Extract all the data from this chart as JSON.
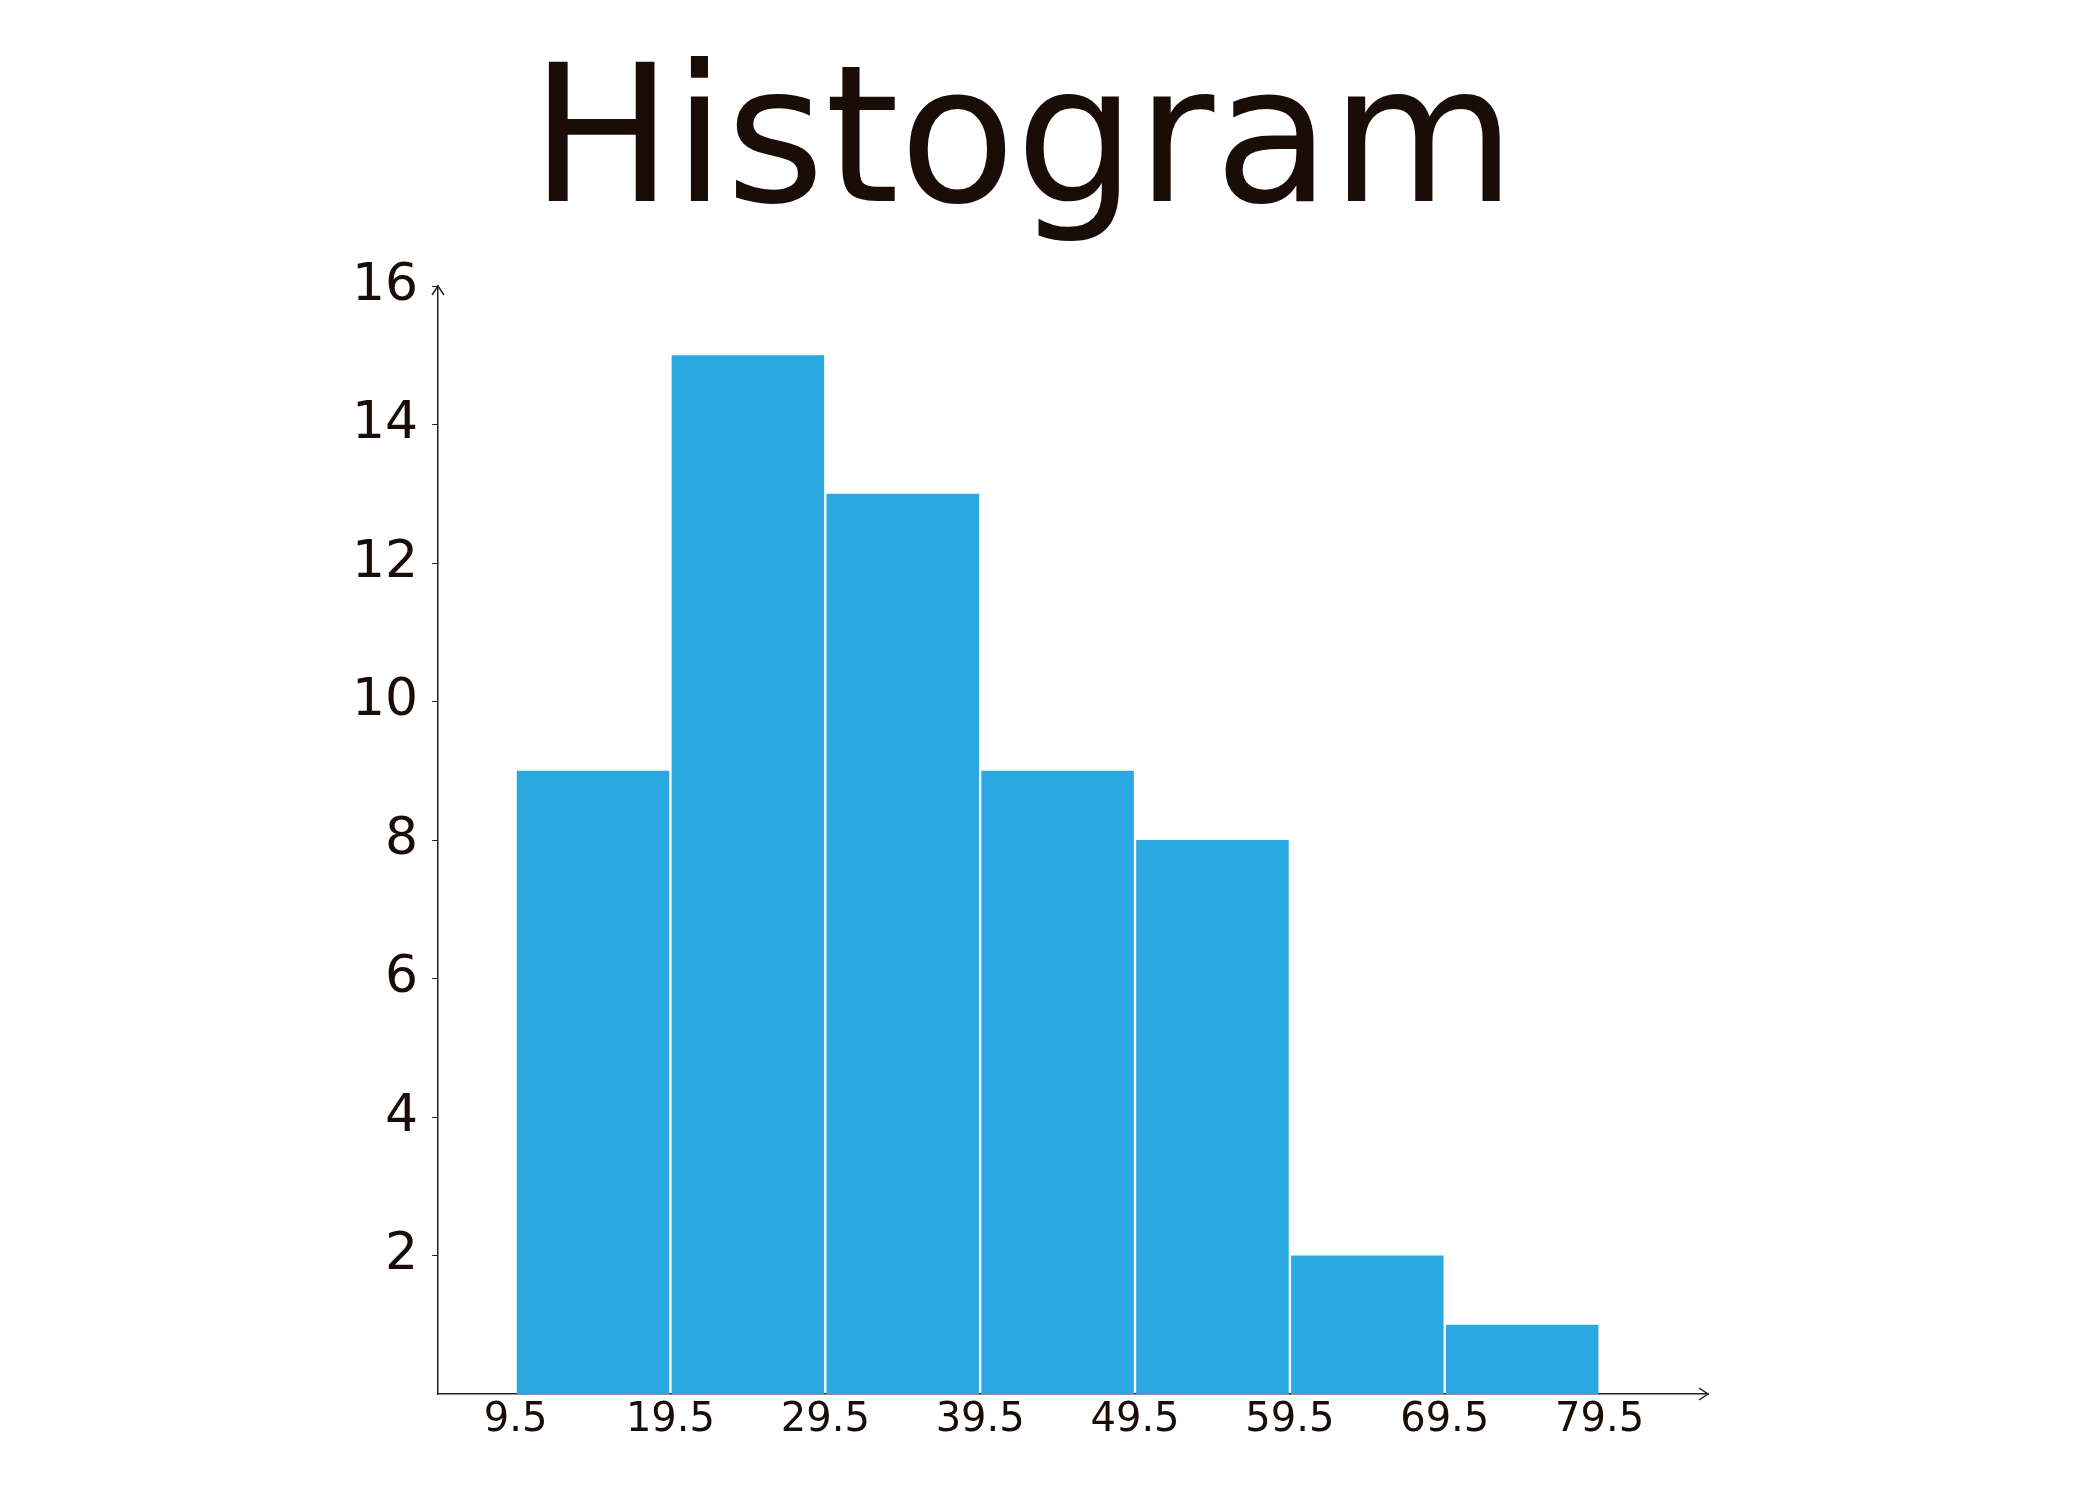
{
  "chart_data": {
    "type": "histogram",
    "title": "Histogram",
    "bins": [
      9.5,
      19.5,
      29.5,
      39.5,
      49.5,
      59.5,
      69.5,
      79.5
    ],
    "values": [
      9,
      15,
      13,
      9,
      8,
      2,
      1
    ],
    "color": "#29a9e0",
    "xlim": [
      4.5,
      86.5
    ],
    "xticks": [
      9.5,
      19.5,
      29.5,
      39.5,
      49.5,
      59.5,
      69.5,
      79.5
    ],
    "ylim": [
      0,
      16
    ],
    "yticks": [
      2,
      4,
      6,
      8,
      10,
      12,
      14,
      16
    ],
    "grid": false,
    "legend": false
  }
}
